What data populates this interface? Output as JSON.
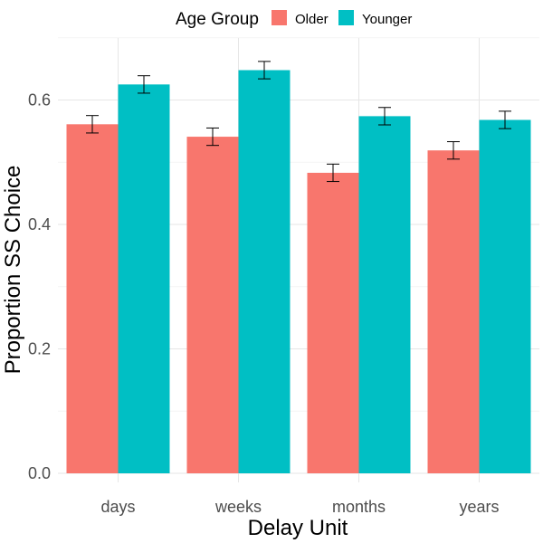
{
  "chart_data": {
    "type": "bar",
    "xlabel": "Delay Unit",
    "ylabel": "Proportion SS Choice",
    "categories": [
      "days",
      "weeks",
      "months",
      "years"
    ],
    "ylim": [
      0,
      0.7
    ],
    "yticks": [
      0.0,
      0.2,
      0.4,
      0.6
    ],
    "ytick_labels": [
      "0.0",
      "0.2",
      "0.4",
      "0.6"
    ],
    "grid": true,
    "legend": {
      "title": "Age Group",
      "position": "top"
    },
    "series": [
      {
        "name": "Older",
        "color": "#F8766D",
        "values": [
          0.561,
          0.541,
          0.483,
          0.519
        ],
        "error": [
          0.014,
          0.014,
          0.014,
          0.014
        ]
      },
      {
        "name": "Younger",
        "color": "#00BFC4",
        "values": [
          0.625,
          0.648,
          0.574,
          0.568
        ],
        "error": [
          0.014,
          0.014,
          0.014,
          0.014
        ]
      }
    ]
  }
}
